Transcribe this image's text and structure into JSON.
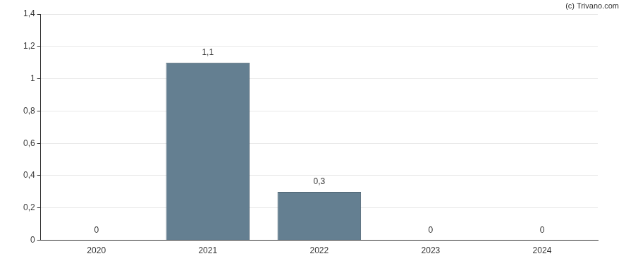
{
  "chart_data": {
    "type": "bar",
    "annotations": [
      "(c) Trivano.com"
    ],
    "categories": [
      "2020",
      "2021",
      "2022",
      "2023",
      "2024"
    ],
    "values": [
      0,
      1.1,
      0.3,
      0,
      0
    ],
    "value_labels": [
      "0",
      "1,1",
      "0,3",
      "0",
      "0"
    ],
    "data_labels": true,
    "color": "#647f91",
    "ylim": [
      0,
      1.4
    ],
    "yticks": [
      0,
      {
        "value": 0.2,
        "label": "0,2"
      },
      {
        "value": 0.4,
        "label": "0,4"
      },
      {
        "value": 0.6,
        "label": "0,6"
      },
      {
        "value": 0.8,
        "label": "0,8"
      },
      1,
      {
        "value": 1.2,
        "label": "1,2"
      },
      {
        "value": 1.4,
        "label": "1,4"
      }
    ],
    "grid": true
  }
}
